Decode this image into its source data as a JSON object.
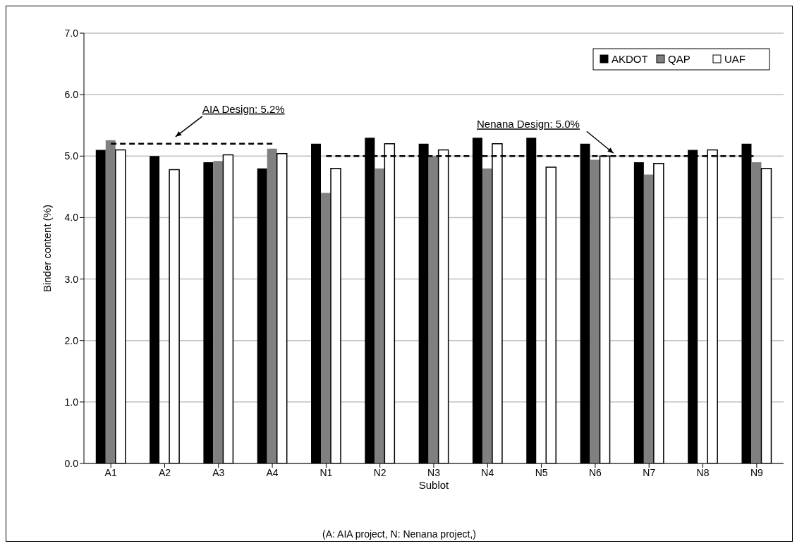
{
  "chart_data": {
    "type": "bar",
    "xlabel": "Sublot",
    "ylabel": "Binder content (%)",
    "categories": [
      "A1",
      "A2",
      "A3",
      "A4",
      "N1",
      "N2",
      "N3",
      "N4",
      "N5",
      "N6",
      "N7",
      "N8",
      "N9"
    ],
    "series": [
      {
        "name": "AKDOT",
        "color": "#000000",
        "values": [
          5.1,
          5.0,
          4.9,
          4.8,
          5.2,
          5.3,
          5.2,
          5.3,
          5.3,
          5.2,
          4.9,
          5.1,
          5.2
        ]
      },
      {
        "name": "QAP",
        "color": "#808080",
        "values": [
          5.26,
          null,
          4.92,
          5.12,
          4.4,
          4.8,
          5.0,
          4.8,
          null,
          4.94,
          4.7,
          null,
          4.9
        ]
      },
      {
        "name": "UAF",
        "color": "#ffffff",
        "values": [
          5.1,
          4.78,
          5.02,
          5.04,
          4.8,
          5.2,
          5.1,
          5.2,
          4.82,
          5.0,
          4.88,
          5.1,
          4.8
        ]
      },
      {
        "type": "line",
        "name": "AIA Design: 5.2%",
        "color": "#000000",
        "line_style": "dashed",
        "marker": "none",
        "values": [
          5.2,
          5.2,
          5.2,
          5.2,
          null,
          null,
          null,
          null,
          null,
          null,
          null,
          null,
          null
        ]
      },
      {
        "type": "line",
        "name": "Nenana Design: 5.0%",
        "color": "#000000",
        "line_style": "dashed",
        "marker": "none",
        "values": [
          null,
          null,
          null,
          null,
          5.0,
          5.0,
          5.0,
          5.0,
          5.0,
          5.0,
          5.0,
          5.0,
          5.0
        ]
      }
    ],
    "ylim": [
      0,
      7
    ],
    "yticks": [
      {
        "value": 0,
        "label": "0.0"
      },
      {
        "value": 1,
        "label": "1.0"
      },
      {
        "value": 2,
        "label": "2.0"
      },
      {
        "value": 3,
        "label": "3.0"
      },
      {
        "value": 4,
        "label": "4.0"
      },
      {
        "value": 5,
        "label": "5.0"
      },
      {
        "value": 6,
        "label": "6.0"
      },
      {
        "value": 7,
        "label": "7.0"
      }
    ],
    "grid": "y",
    "legend": "top right",
    "annotations": [
      "(A: AIA project, N: Nenana project,)"
    ]
  }
}
